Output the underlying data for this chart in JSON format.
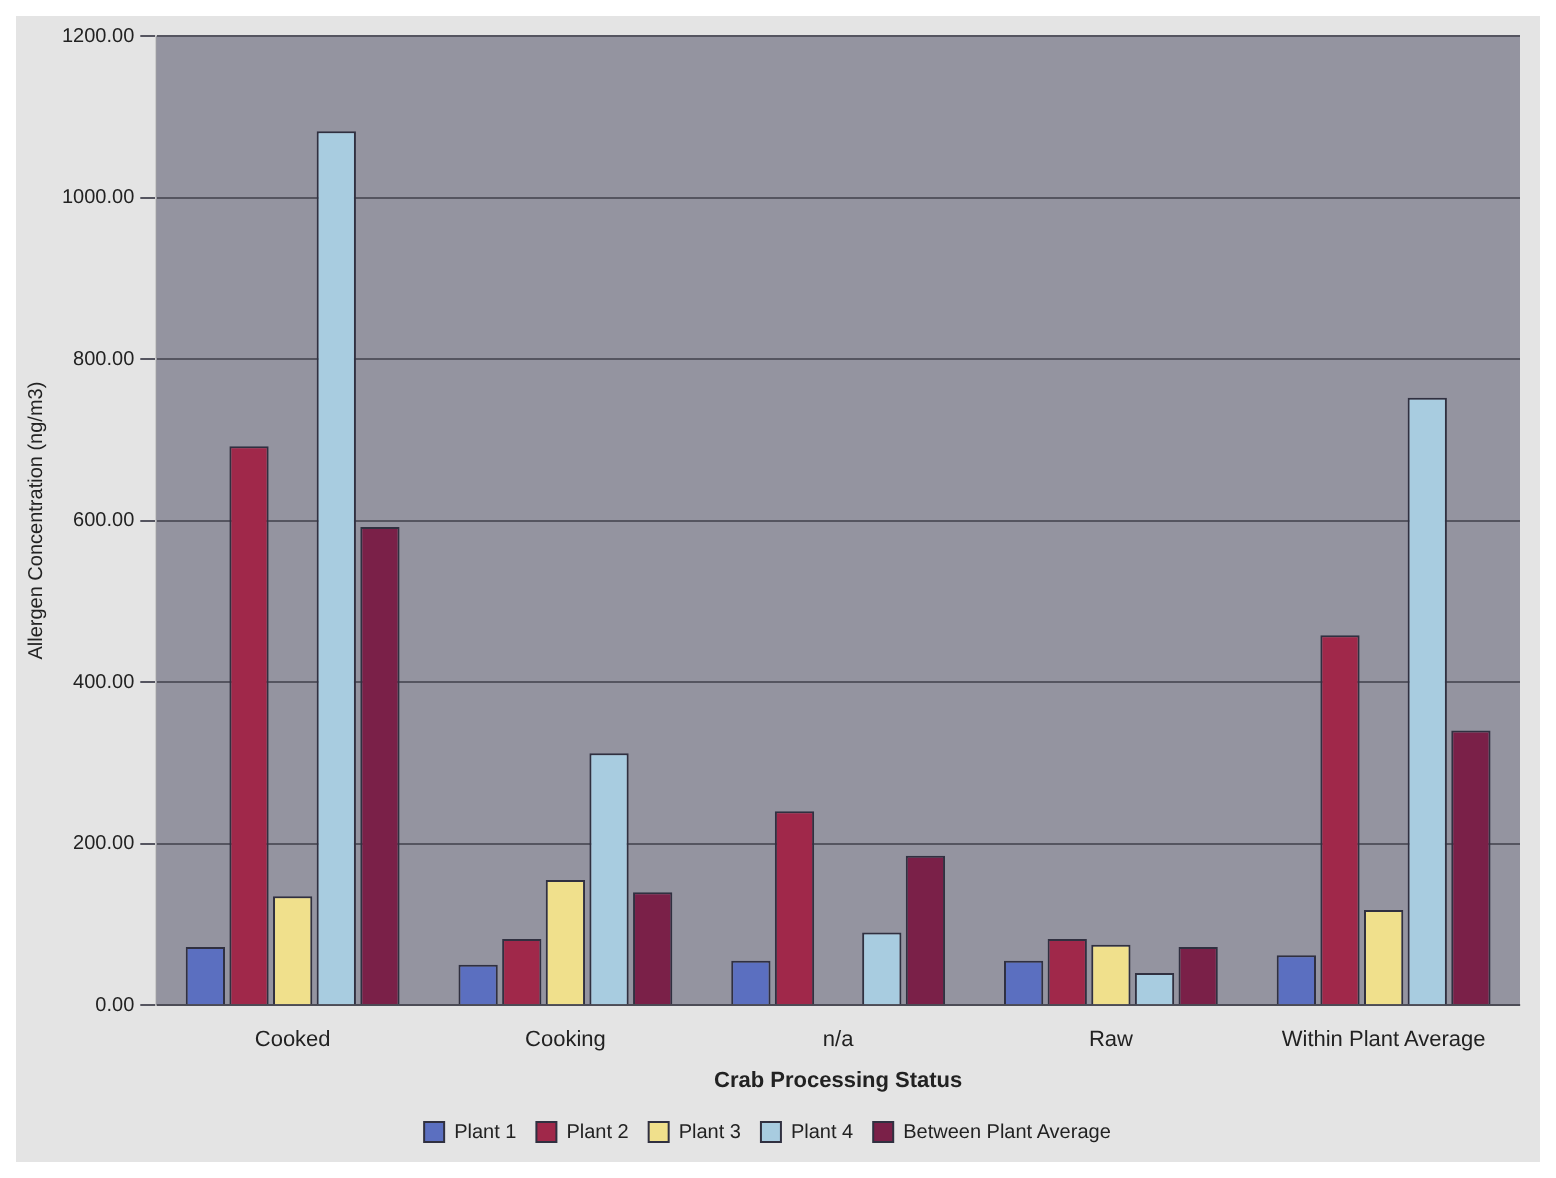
{
  "chart_data": {
    "type": "bar",
    "xlabel": "Crab Processing Status",
    "ylabel": "Allergen Concentration (ng/m3)",
    "categories": [
      "Cooked",
      "Cooking",
      "n/a",
      "Raw",
      "Within Plant Average"
    ],
    "series": [
      {
        "name": "Plant 1",
        "color": "#5b6fc0",
        "values": [
          72,
          50,
          55,
          55,
          62
        ]
      },
      {
        "name": "Plant 2",
        "color": "#a0284a",
        "values": [
          692,
          82,
          240,
          82,
          458
        ]
      },
      {
        "name": "Plant 3",
        "color": "#f0e08c",
        "values": [
          135,
          155,
          null,
          75,
          118
        ]
      },
      {
        "name": "Plant 4",
        "color": "#a8cce0",
        "values": [
          1082,
          312,
          90,
          40,
          752
        ]
      },
      {
        "name": "Between Plant Average",
        "color": "#7a2048",
        "values": [
          592,
          140,
          185,
          72,
          340
        ]
      }
    ],
    "ylim": [
      0,
      1200
    ],
    "yticks": [
      {
        "value": 0,
        "label": "0.00"
      },
      {
        "value": 200,
        "label": "200.00"
      },
      {
        "value": 400,
        "label": "400.00"
      },
      {
        "value": 600,
        "label": "600.00"
      },
      {
        "value": 800,
        "label": "800.00"
      },
      {
        "value": 1000,
        "label": "1000.00"
      },
      {
        "value": 1200,
        "label": "1200.00"
      }
    ],
    "grid": "y",
    "legend": "bottom"
  }
}
